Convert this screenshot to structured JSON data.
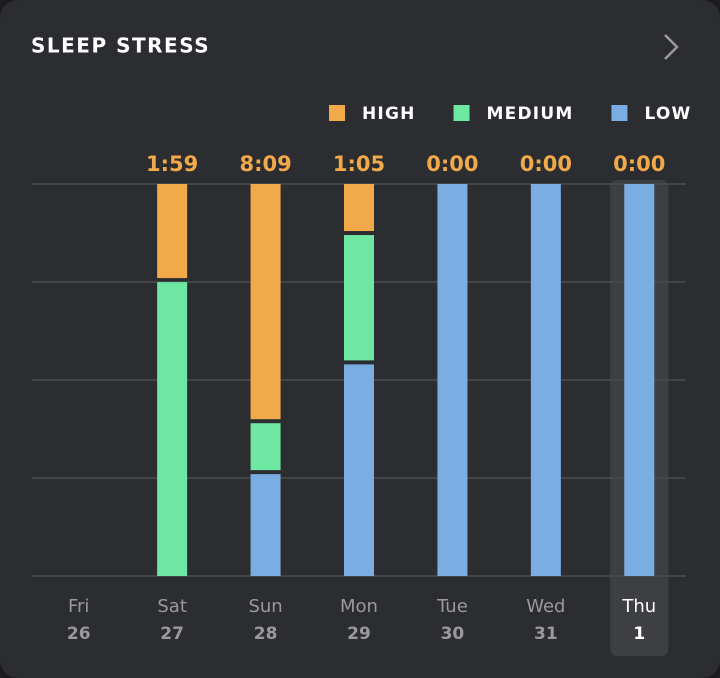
{
  "chart_data": {
    "type": "stacked_bar",
    "title": "SLEEP STRESS",
    "categories": [
      "Fri",
      "Sat",
      "Sun",
      "Mon",
      "Tue",
      "Wed",
      "Thu"
    ],
    "days": [
      26,
      27,
      28,
      29,
      30,
      31,
      1
    ],
    "top_labels": [
      null,
      "1:59",
      "8:09",
      "1:05",
      "0:00",
      "0:00",
      "0:00"
    ],
    "series": [
      {
        "name": "HIGH",
        "color": "#f2a94a",
        "values": [
          null,
          24,
          60,
          12,
          0,
          0,
          0
        ]
      },
      {
        "name": "MEDIUM",
        "color": "#6ee7a3",
        "values": [
          null,
          76,
          13,
          33,
          0,
          0,
          0
        ]
      },
      {
        "name": "LOW",
        "color": "#7aaee3",
        "values": [
          null,
          0,
          27,
          55,
          100,
          100,
          100
        ]
      }
    ],
    "ylim": [
      0,
      100
    ],
    "yticks": [
      0,
      25,
      50,
      75,
      100
    ],
    "grid": true,
    "selected_index": 6
  }
}
